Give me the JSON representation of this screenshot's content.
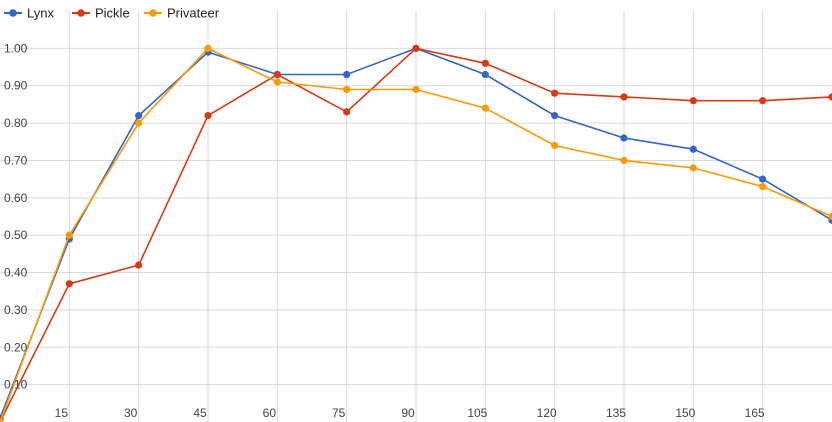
{
  "chart_data": {
    "type": "line",
    "title": "",
    "xlabel": "",
    "ylabel": "",
    "x": [
      0,
      15,
      30,
      45,
      60,
      75,
      90,
      105,
      120,
      135,
      150,
      165,
      180
    ],
    "x_ticks": [
      "15",
      "30",
      "45",
      "60",
      "75",
      "90",
      "105",
      "120",
      "135",
      "150",
      "165"
    ],
    "y_ticks": [
      "0.10",
      "0.20",
      "0.30",
      "0.40",
      "0.50",
      "0.60",
      "0.70",
      "0.80",
      "0.90",
      "1.00"
    ],
    "y_tick_values": [
      0.1,
      0.2,
      0.3,
      0.4,
      0.5,
      0.6,
      0.7,
      0.8,
      0.9,
      1.0
    ],
    "xlim": [
      0,
      180
    ],
    "ylim": [
      0,
      1.1
    ],
    "grid": true,
    "legend_position": "top-left",
    "series": [
      {
        "name": "Lynx",
        "color": "#3366cc",
        "values": [
          0.01,
          0.49,
          0.82,
          0.99,
          0.93,
          0.93,
          1.0,
          0.93,
          0.82,
          0.76,
          0.73,
          0.65,
          0.54
        ]
      },
      {
        "name": "Pickle",
        "color": "#dc3912",
        "values": [
          0.0,
          0.37,
          0.42,
          0.82,
          0.93,
          0.83,
          1.0,
          0.96,
          0.88,
          0.87,
          0.86,
          0.86,
          0.87
        ]
      },
      {
        "name": "Privateer",
        "color": "#ff9900",
        "values": [
          0.0,
          0.5,
          0.8,
          1.0,
          0.91,
          0.89,
          0.89,
          0.84,
          0.74,
          0.7,
          0.68,
          0.63,
          0.55
        ]
      }
    ]
  }
}
